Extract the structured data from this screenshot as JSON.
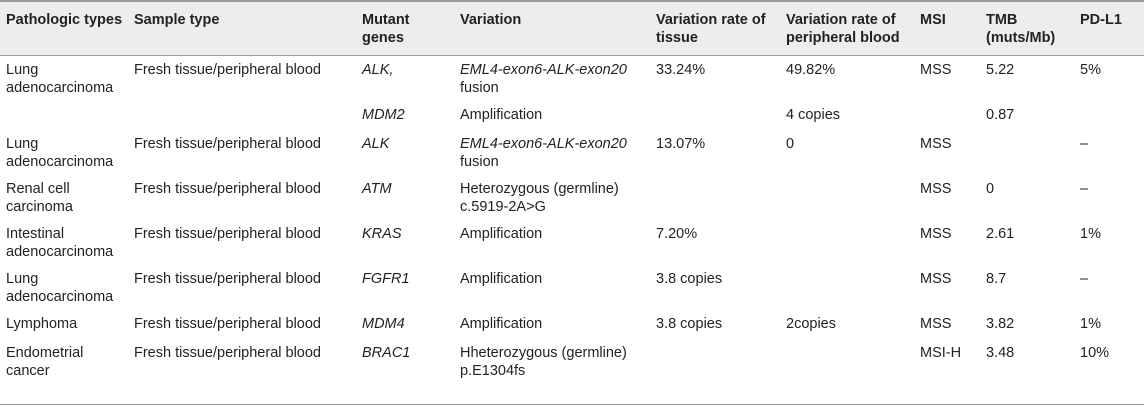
{
  "headers": {
    "pathologic_types": "Pathologic types",
    "sample_type": "Sample type",
    "mutant_genes": "Mutant genes",
    "variation": "Variation",
    "variation_rate_tissue": "Variation rate of tissue",
    "variation_rate_blood": "Variation rate of peripheral blood",
    "msi": "MSI",
    "tmb": "TMB (muts/Mb)",
    "pdl1": "PD-L1"
  },
  "rows": [
    {
      "pathologic_type": "Lung adenocarcinoma",
      "sample_type": "Fresh tissue/peripheral blood",
      "mutant_gene": "ALK,",
      "variation_line1": "EML4-exon6-ALK-exon20",
      "variation_line2": "fusion",
      "rate_tissue": "33.24%",
      "rate_blood": "49.82%",
      "msi": "MSS",
      "tmb": "5.22",
      "pdl1": "5%"
    },
    {
      "pathologic_type": "",
      "sample_type": "",
      "mutant_gene": "MDM2",
      "variation_line1": "Amplification",
      "variation_line2": "",
      "rate_tissue": "",
      "rate_blood": "4 copies",
      "msi": "",
      "tmb": "0.87",
      "pdl1": ""
    },
    {
      "pathologic_type": "Lung adenocarcinoma",
      "sample_type": "Fresh tissue/peripheral blood",
      "mutant_gene": "ALK",
      "variation_line1": "EML4-exon6-ALK-exon20",
      "variation_line2": "fusion",
      "rate_tissue": "13.07%",
      "rate_blood": "0",
      "msi": "MSS",
      "tmb": "",
      "pdl1": "–"
    },
    {
      "pathologic_type": "Renal cell carcinoma",
      "sample_type": "Fresh tissue/peripheral blood",
      "mutant_gene": "ATM",
      "variation_line1": "Heterozygous (germline)",
      "variation_line2": "c.5919-2A>G",
      "rate_tissue": "",
      "rate_blood": "",
      "msi": "MSS",
      "tmb": "0",
      "pdl1": "–"
    },
    {
      "pathologic_type": "Intestinal adenocarcinoma",
      "sample_type": "Fresh tissue/peripheral blood",
      "mutant_gene": "KRAS",
      "variation_line1": "Amplification",
      "variation_line2": "",
      "rate_tissue": "7.20%",
      "rate_blood": "",
      "msi": "MSS",
      "tmb": "2.61",
      "pdl1": "1%"
    },
    {
      "pathologic_type": "Lung adenocarcinoma",
      "sample_type": "Fresh tissue/peripheral blood",
      "mutant_gene": "FGFR1",
      "variation_line1": "Amplification",
      "variation_line2": "",
      "rate_tissue": "3.8 copies",
      "rate_blood": "",
      "msi": "MSS",
      "tmb": "8.7",
      "pdl1": "–"
    },
    {
      "pathologic_type": "Lymphoma",
      "sample_type": "Fresh tissue/peripheral blood",
      "mutant_gene": "MDM4",
      "variation_line1": "Amplification",
      "variation_line2": "",
      "rate_tissue": "3.8 copies",
      "rate_blood": "2copies",
      "msi": "MSS",
      "tmb": "3.82",
      "pdl1": "1%"
    },
    {
      "pathologic_type": "Endometrial cancer",
      "sample_type": "Fresh tissue/peripheral blood",
      "mutant_gene": "BRAC1",
      "variation_line1": "Hheterozygous (germline)",
      "variation_line2": "p.E1304fs",
      "rate_tissue": "",
      "rate_blood": "",
      "msi": "MSI-H",
      "tmb": "3.48",
      "pdl1": "10%"
    }
  ]
}
